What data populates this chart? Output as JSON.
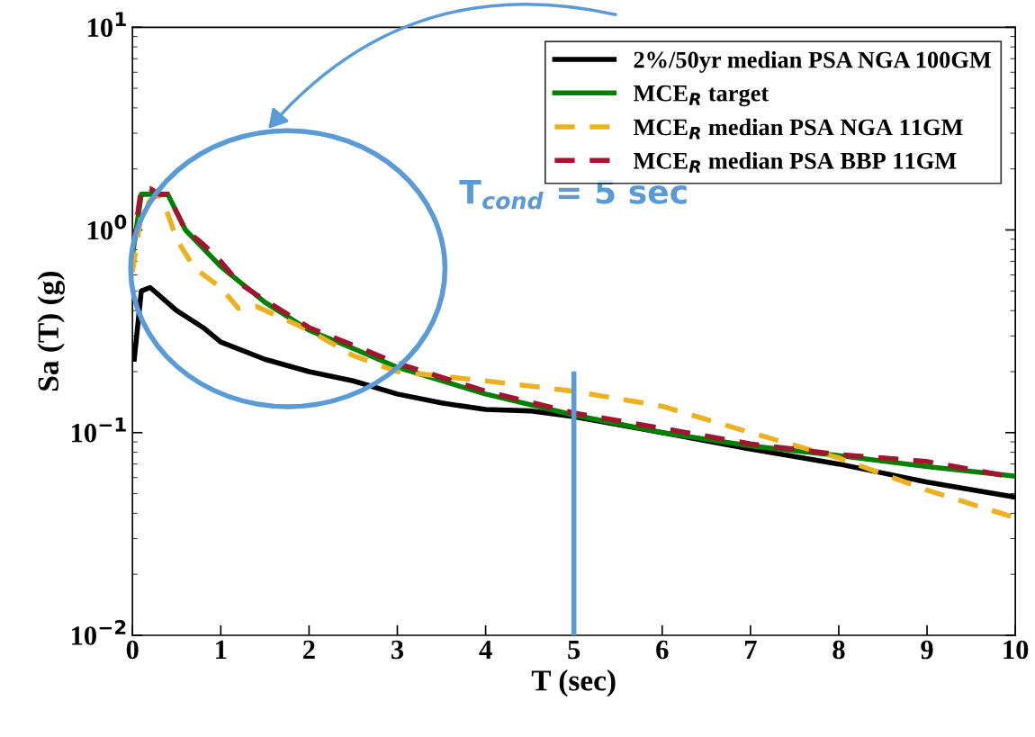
{
  "chart_data": {
    "type": "line",
    "xlabel": "T (sec)",
    "ylabel": "Sa (T) (g)",
    "log": "y",
    "grid": false,
    "legend": "top right",
    "xlim": [
      0,
      10
    ],
    "xticks": [
      0,
      1,
      2,
      3,
      4,
      5,
      6,
      7,
      8,
      9,
      10
    ],
    "ylim": [
      0.01,
      10
    ],
    "yticks": [
      {
        "value": 0.01,
        "label": "10$^{−2}$"
      },
      {
        "value": 0.1,
        "label": "10$^{−1}$"
      },
      {
        "value": 1,
        "label": "10$^{0}$"
      },
      {
        "value": 10,
        "label": "10$^{1}$"
      }
    ],
    "series": [
      {
        "name": "2%/50yr median PSA NGA 100GM",
        "color": "#000000",
        "line_style": "solid",
        "x": [
          0.02,
          0.1,
          0.2,
          0.5,
          0.8,
          1,
          1.5,
          2,
          2.5,
          3,
          3.5,
          4,
          4.5,
          5,
          6,
          7,
          8,
          9,
          10
        ],
        "values": [
          0.23,
          0.5,
          0.52,
          0.4,
          0.33,
          0.28,
          0.23,
          0.2,
          0.18,
          0.155,
          0.14,
          0.13,
          0.128,
          0.12,
          0.1,
          0.083,
          0.07,
          0.057,
          0.048
        ]
      },
      {
        "name": "MCE$_{R}$ target",
        "color": "#008000",
        "line_style": "solid",
        "x": [
          0,
          0.1,
          0.4,
          0.6,
          1,
          1.5,
          2,
          2.5,
          3,
          4,
          5,
          6,
          7,
          8,
          9,
          10
        ],
        "values": [
          0.75,
          1.5,
          1.5,
          1.0,
          0.66,
          0.44,
          0.32,
          0.26,
          0.21,
          0.155,
          0.122,
          0.1,
          0.086,
          0.077,
          0.068,
          0.061
        ]
      },
      {
        "name": "MCE$_{R}$ median PSA NGA 11GM",
        "color": "#edb120",
        "line_style": "dashed",
        "x": [
          0,
          0.1,
          0.2,
          0.3,
          0.4,
          0.5,
          0.7,
          1,
          1.2,
          1.4,
          2,
          2.5,
          3,
          4,
          5,
          6,
          7,
          8,
          9,
          10
        ],
        "values": [
          0.62,
          1.2,
          1.4,
          1.5,
          1.2,
          0.9,
          0.65,
          0.52,
          0.41,
          0.42,
          0.32,
          0.24,
          0.2,
          0.18,
          0.16,
          0.135,
          0.1,
          0.075,
          0.052,
          0.038
        ]
      },
      {
        "name": "MCE$_{R}$ median PSA BBP 11GM",
        "color": "#a2142f",
        "line_style": "dashed",
        "x": [
          0,
          0.1,
          0.2,
          0.3,
          0.4,
          0.6,
          0.8,
          1,
          1.2,
          1.5,
          2,
          2.5,
          3,
          4,
          5,
          6,
          7,
          8,
          9,
          10
        ],
        "values": [
          0.8,
          1.6,
          1.6,
          1.5,
          1.5,
          1.0,
          0.85,
          0.7,
          0.55,
          0.45,
          0.33,
          0.27,
          0.22,
          0.16,
          0.125,
          0.105,
          0.088,
          0.078,
          0.072,
          0.06
        ]
      }
    ],
    "ref_lines": [
      {
        "axis": "x",
        "value": 5,
        "label": "T$_{cond}$ = 5 sec",
        "color": "#5b9bd5"
      }
    ]
  }
}
